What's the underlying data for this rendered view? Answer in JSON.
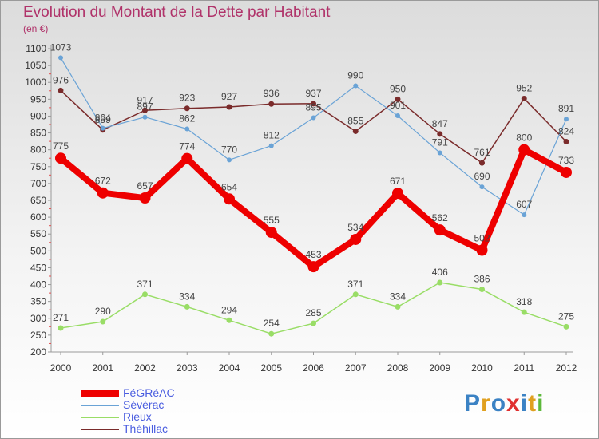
{
  "title": "Evolution du Montant de la Dette par Habitant",
  "unit": "(en €)",
  "brand": "Proxiti",
  "colors": {
    "title": "#b0336a",
    "legend_text": "#4a5de0",
    "axis": "#9a9a9a",
    "label": "#444444"
  },
  "chart_data": {
    "type": "line",
    "title": "Evolution du Montant de la Dette par Habitant",
    "ylabel": "(en €)",
    "xlabel": "",
    "x": [
      "2000",
      "2001",
      "2002",
      "2003",
      "2004",
      "2005",
      "2006",
      "2007",
      "2008",
      "2009",
      "2010",
      "2011",
      "2012"
    ],
    "ylim": [
      200,
      1100
    ],
    "yticks": [
      200,
      250,
      300,
      350,
      400,
      450,
      500,
      550,
      600,
      650,
      700,
      750,
      800,
      850,
      900,
      950,
      1000,
      1050,
      1100
    ],
    "grid": false,
    "legend": "bottom-left",
    "series": [
      {
        "name": "FéGRéAC",
        "color": "#ee0000",
        "values": [
          775,
          672,
          657,
          774,
          654,
          555,
          453,
          534,
          671,
          562,
          502,
          800,
          733
        ]
      },
      {
        "name": "Sévérac",
        "color": "#6aa3d6",
        "values": [
          1073,
          864,
          897,
          862,
          770,
          812,
          895,
          990,
          901,
          791,
          690,
          607,
          891
        ]
      },
      {
        "name": "Rieux",
        "color": "#99dd66",
        "values": [
          271,
          290,
          371,
          334,
          294,
          254,
          285,
          371,
          334,
          406,
          386,
          318,
          275
        ]
      },
      {
        "name": "Théhillac",
        "color": "#7a2b2b",
        "values": [
          976,
          859,
          917,
          923,
          927,
          936,
          937,
          855,
          950,
          847,
          761,
          952,
          824
        ]
      }
    ]
  }
}
